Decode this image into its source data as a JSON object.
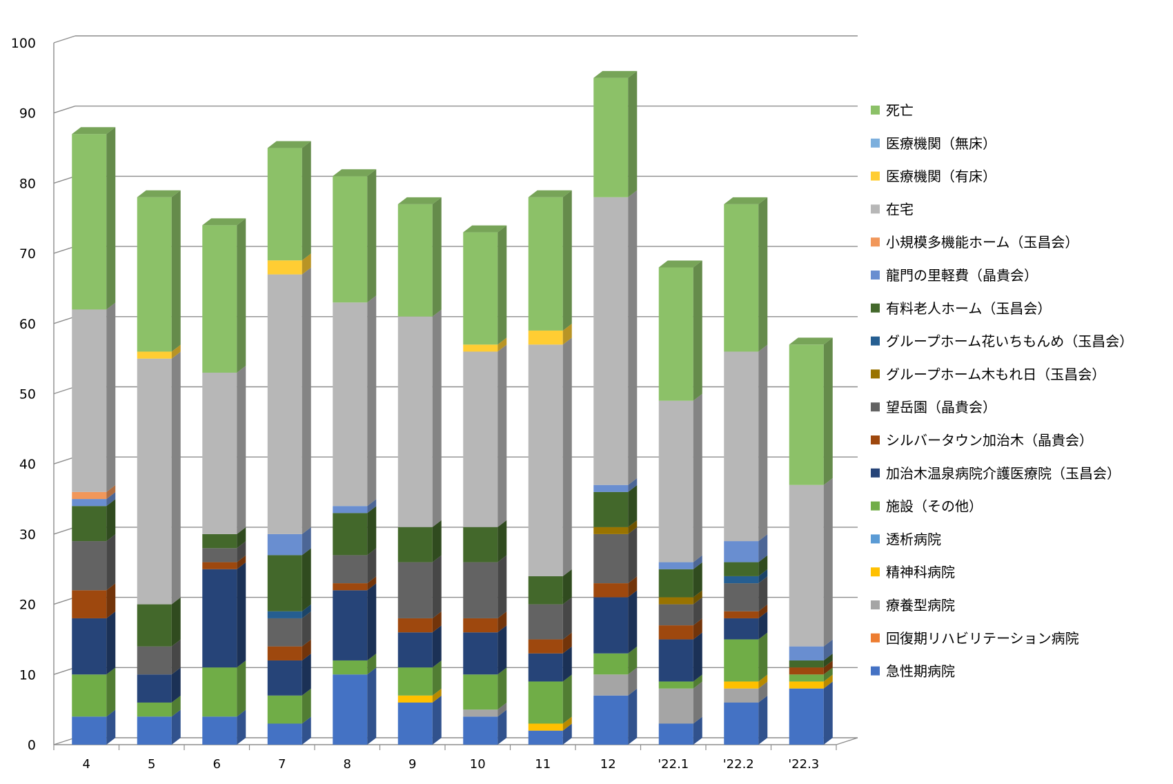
{
  "chart_data": {
    "type": "bar",
    "stacked": true,
    "three_d": true,
    "title": "",
    "xlabel": "",
    "ylabel": "",
    "ylim": [
      0,
      100
    ],
    "yticks": [
      0,
      10,
      20,
      30,
      40,
      50,
      60,
      70,
      80,
      90,
      100
    ],
    "grid": true,
    "legend_position": "right",
    "categories": [
      "4",
      "5",
      "6",
      "7",
      "8",
      "9",
      "10",
      "11",
      "12",
      "'22.1",
      "'22.2",
      "'22.3"
    ],
    "series": [
      {
        "name": "急性期病院",
        "color": "#4472C4",
        "values": [
          4,
          4,
          4,
          3,
          10,
          6,
          4,
          2,
          7,
          3,
          6,
          8
        ]
      },
      {
        "name": "回復期リハビリテーション病院",
        "color": "#ED7D31",
        "values": [
          0,
          0,
          0,
          0,
          0,
          0,
          0,
          0,
          0,
          0,
          0,
          0
        ]
      },
      {
        "name": "療養型病院",
        "color": "#A5A5A5",
        "values": [
          0,
          0,
          0,
          0,
          0,
          0,
          1,
          0,
          3,
          5,
          2,
          0
        ]
      },
      {
        "name": "精神科病院",
        "color": "#FFC000",
        "values": [
          0,
          0,
          0,
          0,
          0,
          1,
          0,
          1,
          0,
          0,
          1,
          1
        ]
      },
      {
        "name": "透析病院",
        "color": "#5B9BD5",
        "values": [
          0,
          0,
          0,
          0,
          0,
          0,
          0,
          0,
          0,
          0,
          0,
          0
        ]
      },
      {
        "name": "施設（その他）",
        "color": "#70AD47",
        "values": [
          6,
          2,
          7,
          4,
          2,
          4,
          5,
          6,
          3,
          1,
          6,
          1
        ]
      },
      {
        "name": "加治木温泉病院介護医療院（玉昌会）",
        "color": "#264478",
        "values": [
          8,
          4,
          14,
          5,
          10,
          5,
          6,
          4,
          8,
          6,
          3,
          0
        ]
      },
      {
        "name": "シルバータウン加治木（晶貴会）",
        "color": "#9E480E",
        "values": [
          4,
          0,
          1,
          2,
          1,
          2,
          2,
          2,
          2,
          2,
          1,
          1
        ]
      },
      {
        "name": "望岳園（晶貴会）",
        "color": "#636363",
        "values": [
          7,
          4,
          2,
          4,
          4,
          8,
          8,
          5,
          7,
          3,
          4,
          0
        ]
      },
      {
        "name": "グループホーム木もれ日（玉昌会）",
        "color": "#997300",
        "values": [
          0,
          0,
          0,
          0,
          0,
          0,
          0,
          0,
          1,
          1,
          0,
          0
        ]
      },
      {
        "name": "グループホーム花いちもんめ（玉昌会）",
        "color": "#255E91",
        "values": [
          0,
          0,
          0,
          1,
          0,
          0,
          0,
          0,
          0,
          0,
          1,
          0
        ]
      },
      {
        "name": "有料老人ホーム（玉昌会）",
        "color": "#43682B",
        "values": [
          5,
          6,
          2,
          8,
          6,
          5,
          5,
          4,
          5,
          4,
          2,
          1
        ]
      },
      {
        "name": "龍門の里軽費（晶貴会）",
        "color": "#698ED0",
        "values": [
          1,
          0,
          0,
          3,
          1,
          0,
          0,
          0,
          1,
          1,
          3,
          2
        ]
      },
      {
        "name": "小規模多機能ホーム（玉昌会）",
        "color": "#F1975A",
        "values": [
          1,
          0,
          0,
          0,
          0,
          0,
          0,
          0,
          0,
          0,
          0,
          0
        ]
      },
      {
        "name": "在宅",
        "color": "#B7B7B7",
        "values": [
          26,
          35,
          23,
          37,
          29,
          30,
          25,
          33,
          41,
          23,
          27,
          23
        ]
      },
      {
        "name": "医療機関（有床）",
        "color": "#FFCD33",
        "values": [
          0,
          1,
          0,
          2,
          0,
          0,
          1,
          2,
          0,
          0,
          0,
          0
        ]
      },
      {
        "name": "医療機関（無床）",
        "color": "#7CAFDD",
        "values": [
          0,
          0,
          0,
          0,
          0,
          0,
          0,
          0,
          0,
          0,
          0,
          0
        ]
      },
      {
        "name": "死亡",
        "color": "#8CC168",
        "values": [
          25,
          22,
          21,
          16,
          18,
          16,
          16,
          19,
          17,
          19,
          21,
          20
        ]
      }
    ]
  }
}
